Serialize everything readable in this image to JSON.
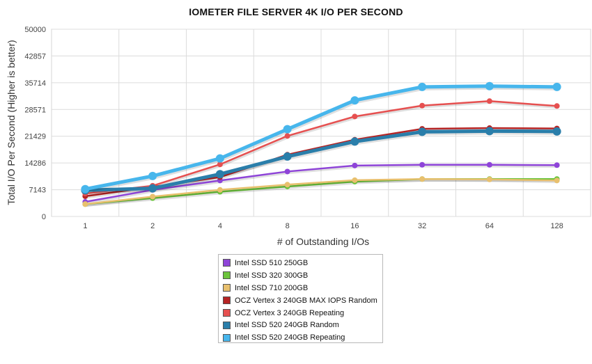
{
  "chart_data": {
    "type": "line",
    "title": "IOMETER FILE SERVER 4K I/O PER SECOND",
    "xlabel": "# of Outstanding I/Os",
    "ylabel": "Total I/O Per Second (Higher is better)",
    "categories": [
      "1",
      "2",
      "4",
      "8",
      "16",
      "32",
      "64",
      "128"
    ],
    "ylim": [
      0,
      50000
    ],
    "yticks": [
      "0",
      "7143",
      "14286",
      "21429",
      "28571",
      "35714",
      "42857",
      "50000"
    ],
    "grid": true,
    "legend_position": "bottom-center",
    "series": [
      {
        "name": "Intel SSD 510 250GB",
        "color": "#8e44d8",
        "values": [
          3900,
          7100,
          9600,
          12000,
          13600,
          13800,
          13800,
          13700
        ]
      },
      {
        "name": "Intel SSD 320 300GB",
        "color": "#6cc43c",
        "values": [
          3300,
          4900,
          6600,
          8000,
          9300,
          10000,
          10000,
          10000
        ]
      },
      {
        "name": "Intel SSD 710 200GB",
        "color": "#e8c06e",
        "values": [
          3300,
          5300,
          7100,
          8500,
          9700,
          10000,
          9900,
          9600
        ]
      },
      {
        "name": "OCZ Vertex 3 240GB MAX IOPS Random",
        "color": "#b62424",
        "values": [
          5400,
          7900,
          10500,
          16500,
          20500,
          23400,
          23600,
          23500
        ]
      },
      {
        "name": "OCZ Vertex 3 240GB Repeating",
        "color": "#e65050",
        "values": [
          6100,
          8200,
          13900,
          21500,
          26700,
          29600,
          30800,
          29500
        ]
      },
      {
        "name": "Intel SSD 520 240GB Random",
        "color": "#2a7eaa",
        "values": [
          7000,
          7500,
          11300,
          16000,
          20000,
          22600,
          22800,
          22700
        ]
      },
      {
        "name": "Intel SSD 520 240GB Repeating",
        "color": "#47b6ec",
        "values": [
          7300,
          10800,
          15500,
          23300,
          31000,
          34600,
          34800,
          34600
        ]
      }
    ]
  }
}
